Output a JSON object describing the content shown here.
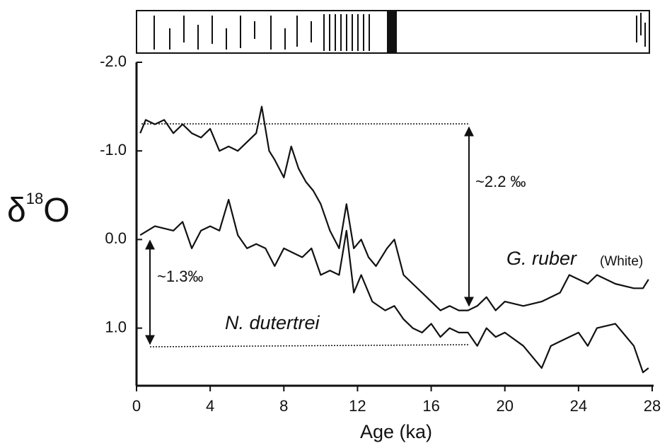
{
  "chart_data": {
    "type": "line",
    "xlabel": "Age (ka)",
    "ylabel": [
      "δ",
      "18",
      "O"
    ],
    "xlim": [
      0,
      28
    ],
    "xticks": [
      0,
      4,
      8,
      12,
      16,
      20,
      24,
      28
    ],
    "ylim": [
      -2.0,
      1.65
    ],
    "y_reversed": true,
    "yticks": [
      {
        "value": -2,
        "label": "-2.0"
      },
      {
        "value": -1,
        "label": "-1.0"
      },
      {
        "value": 0,
        "label": "0.0"
      },
      {
        "value": 1,
        "label": "1.0"
      }
    ],
    "annotations": [
      "~2.2 ‰",
      "~1.3‰",
      "G. ruber",
      "(White)",
      "N. dutertrei"
    ],
    "series": [
      {
        "name": "G. ruber",
        "color": "#111111",
        "x": [
          0.2,
          0.5,
          1,
          1.5,
          2,
          2.5,
          3,
          3.5,
          4,
          4.5,
          5,
          5.5,
          6,
          6.5,
          6.8,
          7.2,
          7.5,
          8,
          8.4,
          8.8,
          9.2,
          9.6,
          10,
          10.5,
          11,
          11.4,
          11.8,
          12.2,
          12.6,
          13,
          13.6,
          14,
          14.5,
          15,
          15.5,
          16,
          16.5,
          17,
          17.5,
          18,
          18.5,
          19,
          19.5,
          20,
          21,
          22,
          23,
          23.5,
          24,
          24.5,
          25,
          26,
          27,
          27.5,
          27.8
        ],
        "values": [
          -1.2,
          -1.35,
          -1.3,
          -1.35,
          -1.2,
          -1.3,
          -1.2,
          -1.15,
          -1.25,
          -1.0,
          -1.05,
          -1.0,
          -1.1,
          -1.2,
          -1.5,
          -1.0,
          -0.9,
          -0.7,
          -1.05,
          -0.8,
          -0.65,
          -0.55,
          -0.4,
          -0.1,
          0.1,
          -0.4,
          0.1,
          0.0,
          0.2,
          0.3,
          0.1,
          0.0,
          0.4,
          0.5,
          0.6,
          0.7,
          0.8,
          0.75,
          0.8,
          0.8,
          0.75,
          0.65,
          0.8,
          0.7,
          0.75,
          0.7,
          0.6,
          0.4,
          0.45,
          0.5,
          0.4,
          0.5,
          0.55,
          0.55,
          0.45
        ]
      },
      {
        "name": "N. dutertrei",
        "color": "#111111",
        "x": [
          0.2,
          1,
          2,
          2.5,
          3,
          3.5,
          4,
          4.5,
          5,
          5.5,
          6,
          6.5,
          7,
          7.5,
          8,
          8.5,
          9,
          9.5,
          10,
          10.5,
          11,
          11.4,
          11.8,
          12.2,
          12.8,
          13.5,
          14,
          14.5,
          15,
          15.5,
          16,
          16.5,
          17,
          17.5,
          18,
          18.5,
          19,
          19.5,
          20,
          21,
          22,
          22.5,
          23,
          24,
          24.5,
          25,
          26,
          27,
          27.5,
          27.8
        ],
        "values": [
          -0.05,
          -0.15,
          -0.1,
          -0.2,
          0.1,
          -0.1,
          -0.15,
          -0.1,
          -0.45,
          -0.05,
          0.1,
          0.05,
          0.1,
          0.3,
          0.1,
          0.15,
          0.2,
          0.1,
          0.4,
          0.35,
          0.4,
          -0.1,
          0.6,
          0.4,
          0.7,
          0.8,
          0.75,
          0.9,
          1.0,
          1.05,
          0.95,
          1.1,
          1.0,
          1.05,
          1.05,
          1.2,
          1.0,
          1.1,
          1.05,
          1.2,
          1.45,
          1.2,
          1.15,
          1.05,
          1.2,
          1.0,
          0.95,
          1.2,
          1.5,
          1.45
        ]
      }
    ]
  }
}
